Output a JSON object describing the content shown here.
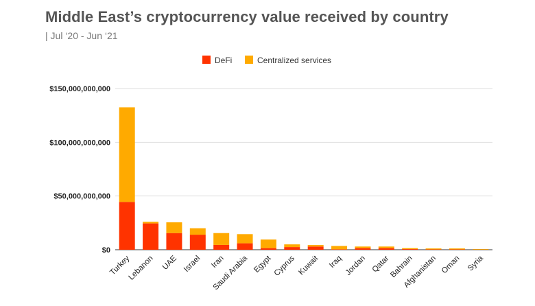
{
  "title": "Middle East’s cryptocurrency value received by country",
  "subtitle": "| Jul ‘20 - Jun ‘21",
  "colors": {
    "defi": "#ff3300",
    "centralized": "#ffaa00",
    "grid": "#dddddd",
    "axis_text": "#222222"
  },
  "chart_data": {
    "type": "bar",
    "stacked": true,
    "categories": [
      "Turkey",
      "Lebanon",
      "UAE",
      "Israel",
      "Iran",
      "Saudi Arabia",
      "Egypt",
      "Cyprus",
      "Kuwait",
      "Iraq",
      "Jordan",
      "Qatar",
      "Bahrain",
      "Afghanistan",
      "Oman",
      "Syria"
    ],
    "series": [
      {
        "name": "DeFi",
        "color": "#ff3300",
        "values": [
          44500000000,
          24500000000,
          15500000000,
          14000000000,
          4500000000,
          6000000000,
          1500000000,
          2500000000,
          3000000000,
          400000000,
          1500000000,
          1500000000,
          600000000,
          300000000,
          300000000,
          100000000
        ]
      },
      {
        "name": "Centralized services",
        "color": "#ffaa00",
        "values": [
          88000000000,
          1500000000,
          10000000000,
          6000000000,
          11000000000,
          8500000000,
          8000000000,
          2500000000,
          1500000000,
          3100000000,
          1500000000,
          1500000000,
          900000000,
          900000000,
          900000000,
          500000000
        ]
      }
    ],
    "ylim": [
      0,
      150000000000
    ],
    "yticks": [
      0,
      50000000000,
      100000000000,
      150000000000
    ],
    "ytick_labels": [
      "$0",
      "$50,000,000,000",
      "$100,000,000,000",
      "$150,000,000,000"
    ],
    "grid": true,
    "legend_position": "top-center"
  }
}
